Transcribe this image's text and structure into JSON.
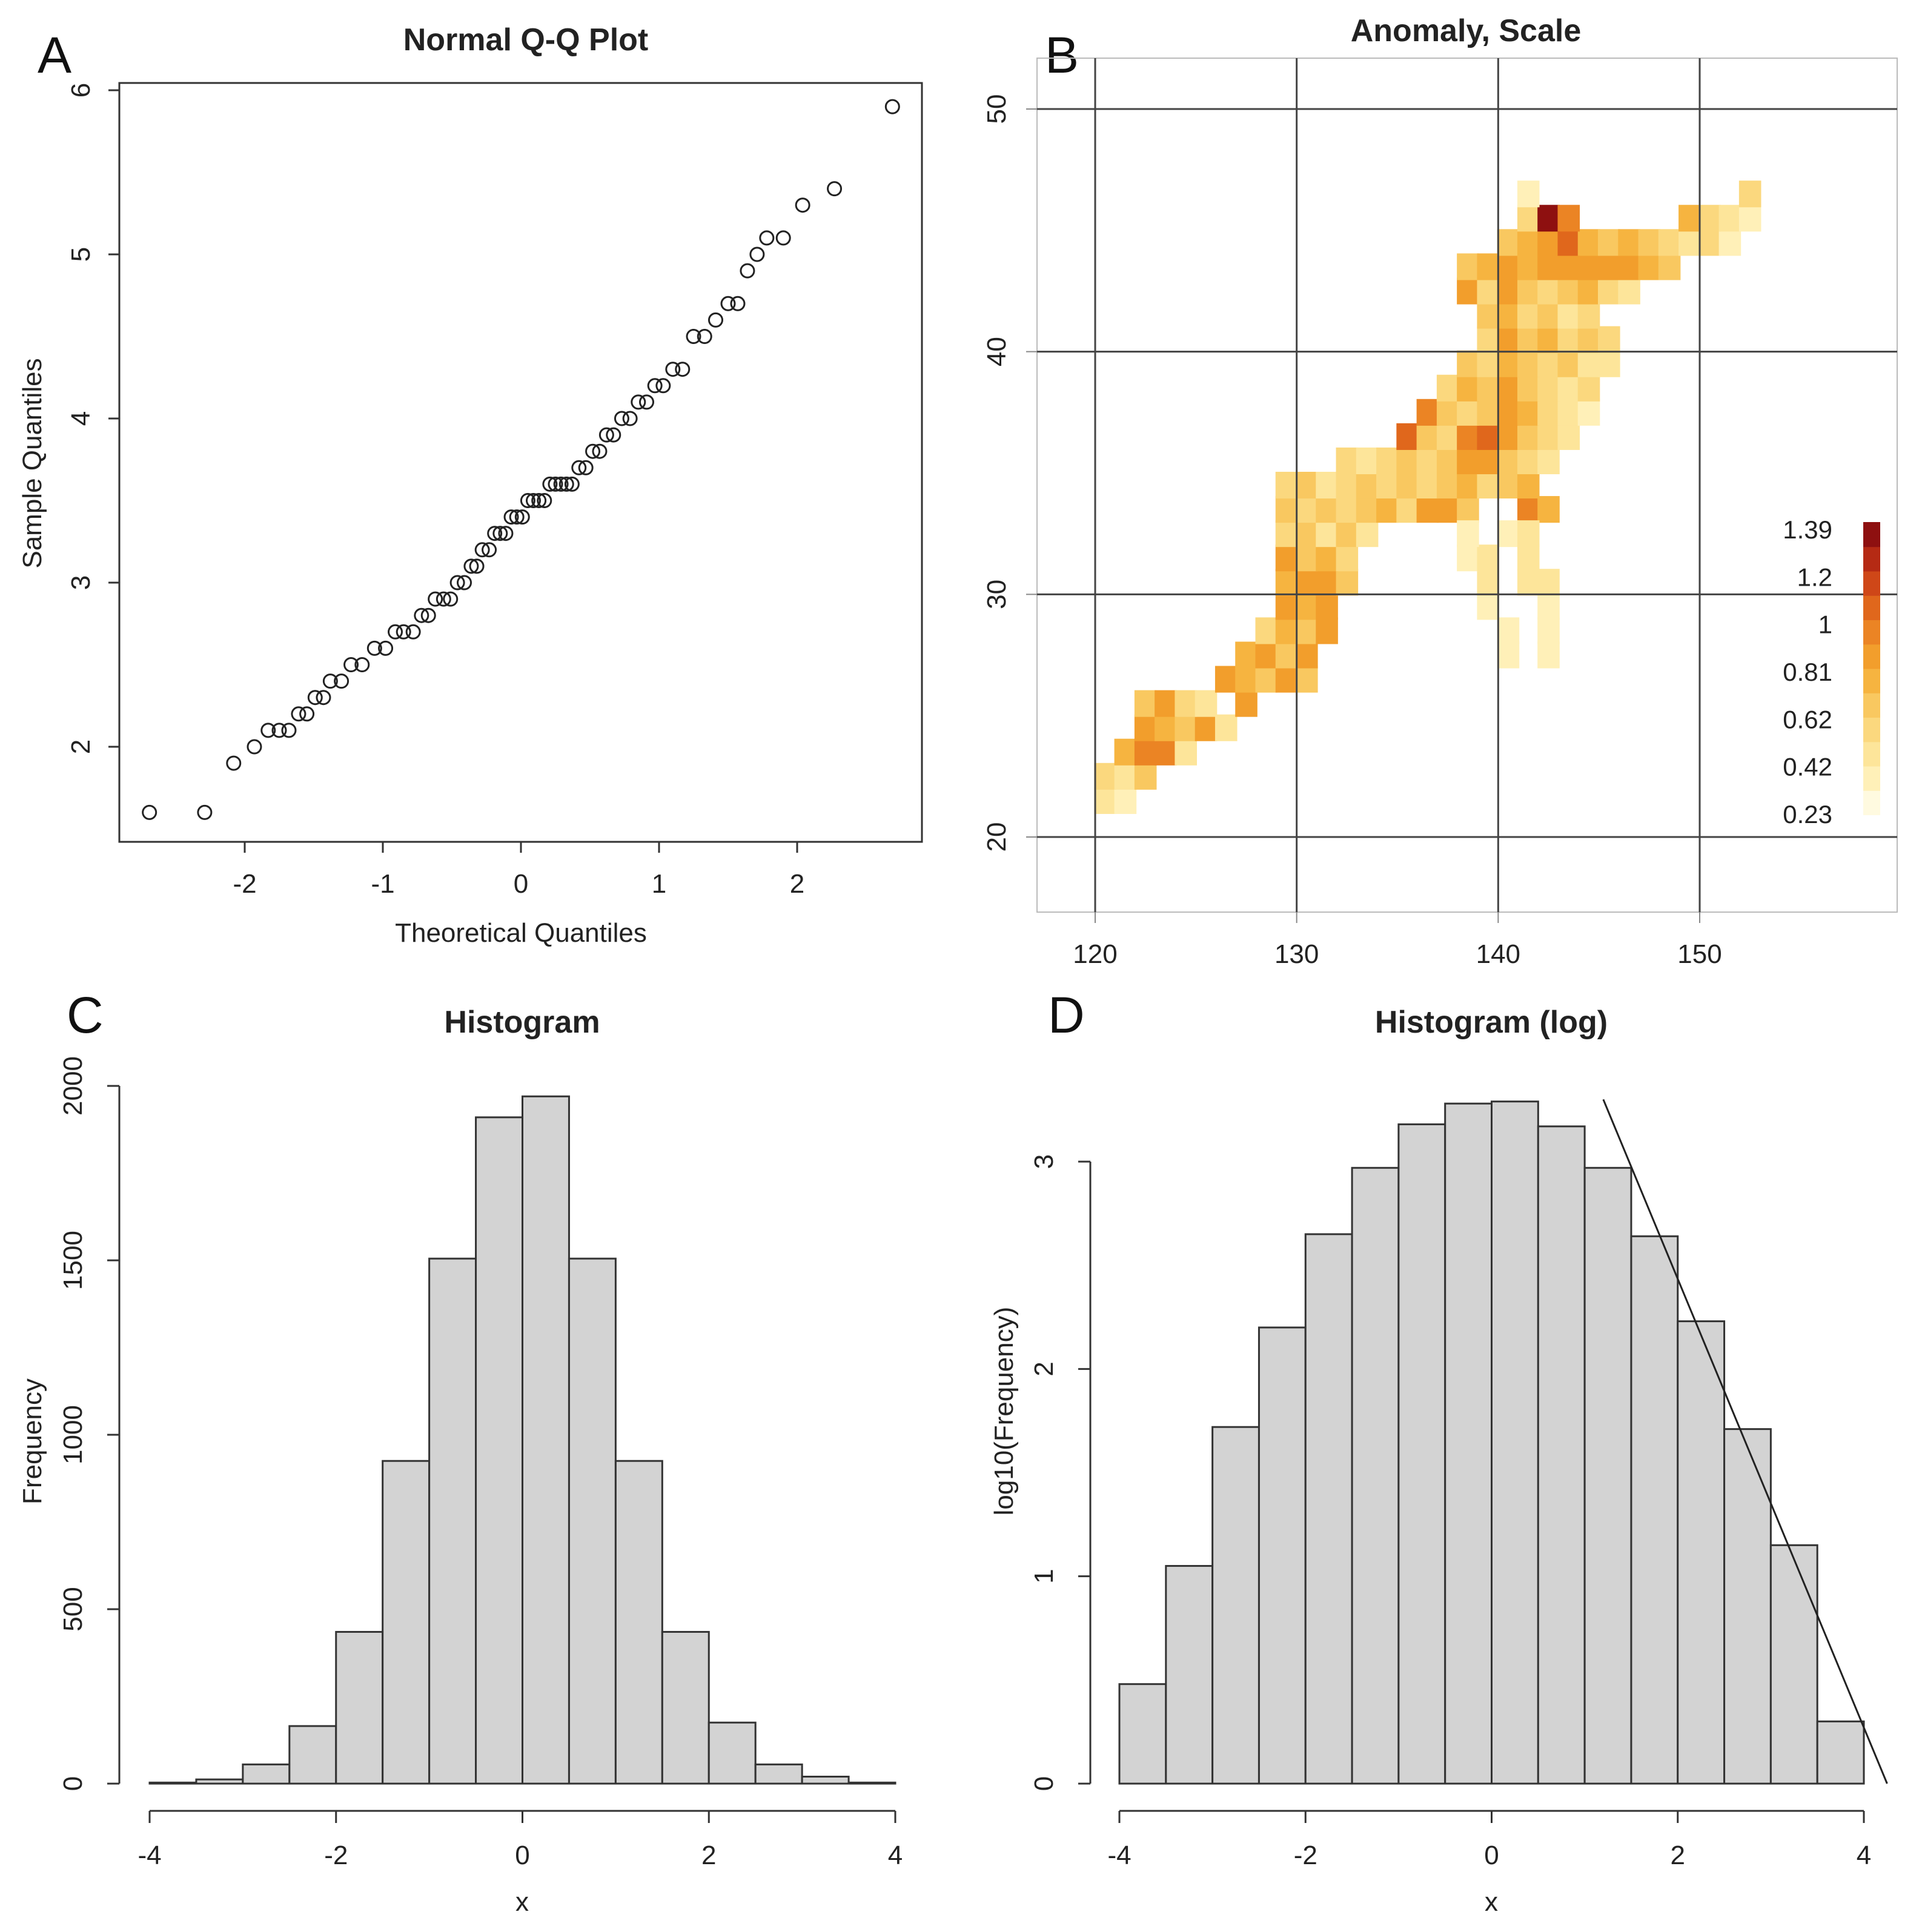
{
  "chart_data": [
    {
      "panel": "A",
      "type": "scatter",
      "title": "Normal Q-Q Plot",
      "xlabel": "Theoretical Quantiles",
      "ylabel": "Sample Quantiles",
      "xlim": [
        -2.8,
        2.8
      ],
      "ylim": [
        1.5,
        6.0
      ],
      "xticks": [
        "-2",
        "-1",
        "0",
        "1",
        "2"
      ],
      "yticks": [
        "2",
        "3",
        "4",
        "5",
        "6"
      ],
      "x": [
        -2.69,
        -2.29,
        -2.08,
        -1.93,
        -1.83,
        -1.75,
        -1.68,
        -1.61,
        -1.55,
        -1.49,
        -1.43,
        -1.38,
        -1.3,
        -1.23,
        -1.15,
        -1.06,
        -0.98,
        -0.91,
        -0.85,
        -0.78,
        -0.72,
        -0.67,
        -0.62,
        -0.56,
        -0.51,
        -0.46,
        -0.41,
        -0.36,
        -0.32,
        -0.28,
        -0.23,
        -0.19,
        -0.15,
        -0.11,
        -0.07,
        -0.03,
        0.01,
        0.05,
        0.09,
        0.13,
        0.17,
        0.21,
        0.25,
        0.29,
        0.33,
        0.37,
        0.42,
        0.47,
        0.52,
        0.57,
        0.62,
        0.67,
        0.73,
        0.79,
        0.85,
        0.91,
        0.97,
        1.03,
        1.1,
        1.17,
        1.25,
        1.33,
        1.41,
        1.5,
        1.57,
        1.64,
        1.71,
        1.78,
        1.9,
        2.04,
        2.27,
        2.69
      ],
      "y": [
        1.6,
        1.6,
        1.9,
        2.0,
        2.1,
        2.1,
        2.1,
        2.2,
        2.2,
        2.3,
        2.3,
        2.4,
        2.4,
        2.5,
        2.5,
        2.6,
        2.6,
        2.7,
        2.7,
        2.7,
        2.8,
        2.8,
        2.9,
        2.9,
        2.9,
        3.0,
        3.0,
        3.1,
        3.1,
        3.2,
        3.2,
        3.3,
        3.3,
        3.3,
        3.4,
        3.4,
        3.4,
        3.5,
        3.5,
        3.5,
        3.5,
        3.6,
        3.6,
        3.6,
        3.6,
        3.6,
        3.7,
        3.7,
        3.8,
        3.8,
        3.9,
        3.9,
        4.0,
        4.0,
        4.1,
        4.1,
        4.2,
        4.2,
        4.3,
        4.3,
        4.5,
        4.5,
        4.6,
        4.7,
        4.7,
        4.9,
        5.0,
        5.1,
        5.1,
        5.3,
        5.4,
        5.9
      ]
    },
    {
      "panel": "B",
      "type": "heatmap",
      "title": "Anomaly, Scale",
      "xlim": [
        117,
        157
      ],
      "ylim": [
        17,
        52
      ],
      "xticks": [
        "120",
        "130",
        "140",
        "150"
      ],
      "yticks": [
        "20",
        "30",
        "40",
        "50"
      ],
      "grid": true,
      "cell_size": 1.1,
      "legend_labels": [
        "1.39",
        "1.2",
        "1",
        "0.81",
        "0.62",
        "0.42",
        "0.23"
      ],
      "legend_position": "right",
      "colorscale": [
        "#fffae0",
        "#fff0b8",
        "#fde59a",
        "#fbd87e",
        "#f9c860",
        "#f6b440",
        "#f29e2c",
        "#eb8424",
        "#e0671c",
        "#cf4718",
        "#b52a14",
        "#8e1010"
      ],
      "cells": [
        [
          120.5,
          21.5,
          0.4
        ],
        [
          121.5,
          21.5,
          0.3
        ],
        [
          120.5,
          22.5,
          0.5
        ],
        [
          121.5,
          22.5,
          0.4
        ],
        [
          122.5,
          22.5,
          0.6
        ],
        [
          121.5,
          23.5,
          0.7
        ],
        [
          122.5,
          23.5,
          1.0
        ],
        [
          123.5,
          23.5,
          1.0
        ],
        [
          124.5,
          23.5,
          0.4
        ],
        [
          122.5,
          24.5,
          0.8
        ],
        [
          123.5,
          24.5,
          0.7
        ],
        [
          124.5,
          24.5,
          0.6
        ],
        [
          125.5,
          24.5,
          0.8
        ],
        [
          126.5,
          24.5,
          0.4
        ],
        [
          122.5,
          25.5,
          0.6
        ],
        [
          123.5,
          25.5,
          0.8
        ],
        [
          124.5,
          25.5,
          0.5
        ],
        [
          125.5,
          25.5,
          0.4
        ],
        [
          127.5,
          25.5,
          0.8
        ],
        [
          126.5,
          26.5,
          0.9
        ],
        [
          127.5,
          26.5,
          0.7
        ],
        [
          128.5,
          26.5,
          0.6
        ],
        [
          129.5,
          26.5,
          0.9
        ],
        [
          130.5,
          26.5,
          0.6
        ],
        [
          127.5,
          27.5,
          0.7
        ],
        [
          128.5,
          27.5,
          0.8
        ],
        [
          129.5,
          27.5,
          0.6
        ],
        [
          130.5,
          27.5,
          0.8
        ],
        [
          128.5,
          28.5,
          0.5
        ],
        [
          129.5,
          28.5,
          0.7
        ],
        [
          130.5,
          28.5,
          0.6
        ],
        [
          131.5,
          28.5,
          0.8
        ],
        [
          129.5,
          29.5,
          0.8
        ],
        [
          130.5,
          29.5,
          0.7
        ],
        [
          131.5,
          29.5,
          0.9
        ],
        [
          129.5,
          30.5,
          0.7
        ],
        [
          130.5,
          30.5,
          0.9
        ],
        [
          131.5,
          30.5,
          0.8
        ],
        [
          132.5,
          30.5,
          0.6
        ],
        [
          129.5,
          31.5,
          0.8
        ],
        [
          130.5,
          31.5,
          0.6
        ],
        [
          131.5,
          31.5,
          0.7
        ],
        [
          132.5,
          31.5,
          0.5
        ],
        [
          129.5,
          32.5,
          0.5
        ],
        [
          130.5,
          32.5,
          0.6
        ],
        [
          131.5,
          32.5,
          0.4
        ],
        [
          132.5,
          32.5,
          0.6
        ],
        [
          133.5,
          32.5,
          0.4
        ],
        [
          129.5,
          33.5,
          0.6
        ],
        [
          130.5,
          33.5,
          0.5
        ],
        [
          131.5,
          33.5,
          0.6
        ],
        [
          132.5,
          33.5,
          0.5
        ],
        [
          133.5,
          33.5,
          0.6
        ],
        [
          134.5,
          33.5,
          0.7
        ],
        [
          135.5,
          33.5,
          0.5
        ],
        [
          136.5,
          33.5,
          0.8
        ],
        [
          137.5,
          33.5,
          0.9
        ],
        [
          138.5,
          33.5,
          0.6
        ],
        [
          141.5,
          33.5,
          1.0
        ],
        [
          142.5,
          33.5,
          0.7
        ],
        [
          129.5,
          34.5,
          0.5
        ],
        [
          130.5,
          34.5,
          0.6
        ],
        [
          131.5,
          34.5,
          0.4
        ],
        [
          132.5,
          34.5,
          0.5
        ],
        [
          133.5,
          34.5,
          0.6
        ],
        [
          134.5,
          34.5,
          0.5
        ],
        [
          135.5,
          34.5,
          0.6
        ],
        [
          136.5,
          34.5,
          0.5
        ],
        [
          137.5,
          34.5,
          0.6
        ],
        [
          138.5,
          34.5,
          0.7
        ],
        [
          139.5,
          34.5,
          0.5
        ],
        [
          140.5,
          34.5,
          0.6
        ],
        [
          141.5,
          34.5,
          0.7
        ],
        [
          132.5,
          35.5,
          0.5
        ],
        [
          133.5,
          35.5,
          0.4
        ],
        [
          134.5,
          35.5,
          0.5
        ],
        [
          135.5,
          35.5,
          0.6
        ],
        [
          136.5,
          35.5,
          0.5
        ],
        [
          137.5,
          35.5,
          0.6
        ],
        [
          138.5,
          35.5,
          0.8
        ],
        [
          139.5,
          35.5,
          0.9
        ],
        [
          140.5,
          35.5,
          0.6
        ],
        [
          141.5,
          35.5,
          0.5
        ],
        [
          142.5,
          35.5,
          0.4
        ],
        [
          135.5,
          36.5,
          1.1
        ],
        [
          136.5,
          36.5,
          0.6
        ],
        [
          137.5,
          36.5,
          0.5
        ],
        [
          138.5,
          36.5,
          1.0
        ],
        [
          139.5,
          36.5,
          1.1
        ],
        [
          140.5,
          36.5,
          0.9
        ],
        [
          141.5,
          36.5,
          0.6
        ],
        [
          142.5,
          36.5,
          0.5
        ],
        [
          143.5,
          36.5,
          0.4
        ],
        [
          136.5,
          37.5,
          1.0
        ],
        [
          137.5,
          37.5,
          0.6
        ],
        [
          138.5,
          37.5,
          0.5
        ],
        [
          139.5,
          37.5,
          0.6
        ],
        [
          140.5,
          37.5,
          0.9
        ],
        [
          141.5,
          37.5,
          0.7
        ],
        [
          142.5,
          37.5,
          0.5
        ],
        [
          143.5,
          37.5,
          0.4
        ],
        [
          144.5,
          37.5,
          0.3
        ],
        [
          137.5,
          38.5,
          0.5
        ],
        [
          138.5,
          38.5,
          0.7
        ],
        [
          139.5,
          38.5,
          0.6
        ],
        [
          140.5,
          38.5,
          0.8
        ],
        [
          141.5,
          38.5,
          0.6
        ],
        [
          142.5,
          38.5,
          0.5
        ],
        [
          143.5,
          38.5,
          0.4
        ],
        [
          144.5,
          38.5,
          0.5
        ],
        [
          138.5,
          39.5,
          0.6
        ],
        [
          139.5,
          39.5,
          0.5
        ],
        [
          140.5,
          39.5,
          0.7
        ],
        [
          141.5,
          39.5,
          0.6
        ],
        [
          142.5,
          39.5,
          0.5
        ],
        [
          143.5,
          39.5,
          0.6
        ],
        [
          144.5,
          39.5,
          0.4
        ],
        [
          145.5,
          39.5,
          0.4
        ],
        [
          139.5,
          40.5,
          0.5
        ],
        [
          140.5,
          40.5,
          0.8
        ],
        [
          141.5,
          40.5,
          0.6
        ],
        [
          142.5,
          40.5,
          0.7
        ],
        [
          143.5,
          40.5,
          0.5
        ],
        [
          144.5,
          40.5,
          0.6
        ],
        [
          145.5,
          40.5,
          0.5
        ],
        [
          139.5,
          41.5,
          0.6
        ],
        [
          140.5,
          41.5,
          0.7
        ],
        [
          141.5,
          41.5,
          0.5
        ],
        [
          142.5,
          41.5,
          0.6
        ],
        [
          143.5,
          41.5,
          0.4
        ],
        [
          144.5,
          41.5,
          0.5
        ],
        [
          138.5,
          42.5,
          0.8
        ],
        [
          139.5,
          42.5,
          0.5
        ],
        [
          140.5,
          42.5,
          0.9
        ],
        [
          141.5,
          42.5,
          0.6
        ],
        [
          142.5,
          42.5,
          0.5
        ],
        [
          143.5,
          42.5,
          0.6
        ],
        [
          144.5,
          42.5,
          0.7
        ],
        [
          145.5,
          42.5,
          0.5
        ],
        [
          146.5,
          42.5,
          0.4
        ],
        [
          138.5,
          43.5,
          0.6
        ],
        [
          139.5,
          43.5,
          0.7
        ],
        [
          140.5,
          43.5,
          0.8
        ],
        [
          141.5,
          43.5,
          0.7
        ],
        [
          142.5,
          43.5,
          0.8
        ],
        [
          143.5,
          43.5,
          0.9
        ],
        [
          144.5,
          43.5,
          0.8
        ],
        [
          145.5,
          43.5,
          0.9
        ],
        [
          146.5,
          43.5,
          0.8
        ],
        [
          147.5,
          43.5,
          0.7
        ],
        [
          148.5,
          43.5,
          0.6
        ],
        [
          140.5,
          44.5,
          0.6
        ],
        [
          141.5,
          44.5,
          0.7
        ],
        [
          142.5,
          44.5,
          0.8
        ],
        [
          143.5,
          44.5,
          1.1
        ],
        [
          144.5,
          44.5,
          0.7
        ],
        [
          145.5,
          44.5,
          0.6
        ],
        [
          146.5,
          44.5,
          0.7
        ],
        [
          147.5,
          44.5,
          0.6
        ],
        [
          148.5,
          44.5,
          0.5
        ],
        [
          149.5,
          44.5,
          0.4
        ],
        [
          150.5,
          44.5,
          0.5
        ],
        [
          151.5,
          44.5,
          0.3
        ],
        [
          141.5,
          45.5,
          0.5
        ],
        [
          142.5,
          45.5,
          1.39
        ],
        [
          143.5,
          45.5,
          1.0
        ],
        [
          149.5,
          45.5,
          0.7
        ],
        [
          150.5,
          45.5,
          0.5
        ],
        [
          151.5,
          45.5,
          0.4
        ],
        [
          152.5,
          45.5,
          0.3
        ],
        [
          141.5,
          46.5,
          0.3
        ],
        [
          152.5,
          46.5,
          0.5
        ],
        [
          139.5,
          29.5,
          0.3
        ],
        [
          139.5,
          30.5,
          0.4
        ],
        [
          138.5,
          31.5,
          0.3
        ],
        [
          139.5,
          31.5,
          0.4
        ],
        [
          138.5,
          32.5,
          0.3
        ],
        [
          140.5,
          32.5,
          0.3
        ],
        [
          141.5,
          32.5,
          0.4
        ],
        [
          140.5,
          28.5,
          0.3
        ],
        [
          140.5,
          27.5,
          0.3
        ],
        [
          141.5,
          30.5,
          0.4
        ],
        [
          141.5,
          31.5,
          0.4
        ],
        [
          142.5,
          28.5,
          0.3
        ],
        [
          142.5,
          29.5,
          0.3
        ],
        [
          142.5,
          30.5,
          0.4
        ],
        [
          142.5,
          27.5,
          0.3
        ]
      ]
    },
    {
      "panel": "C",
      "type": "bar",
      "title": "Histogram",
      "xlabel": "x",
      "ylabel": "Frequency",
      "xlim": [
        -4,
        4
      ],
      "ylim": [
        0,
        2000
      ],
      "xticks": [
        "-4",
        "-2",
        "0",
        "2",
        "4"
      ],
      "yticks": [
        "0",
        "500",
        "1000",
        "1500",
        "2000"
      ],
      "bin_edges": [
        -4,
        -3.5,
        -3,
        -2.5,
        -2,
        -1.5,
        -1,
        -0.5,
        0,
        0.5,
        1,
        1.5,
        2,
        2.5,
        3,
        3.5,
        4
      ],
      "values": [
        3,
        12,
        55,
        165,
        435,
        925,
        1505,
        1910,
        1970,
        1505,
        925,
        435,
        175,
        55,
        20,
        3
      ]
    },
    {
      "panel": "D",
      "type": "bar",
      "title": "Histogram (log)",
      "xlabel": "x",
      "ylabel": "log10(Frequency)",
      "xlim": [
        -4,
        4
      ],
      "ylim": [
        0,
        3.3
      ],
      "xticks": [
        "-4",
        "-2",
        "0",
        "2",
        "4"
      ],
      "yticks": [
        "0",
        "1",
        "2",
        "3"
      ],
      "bin_edges": [
        -4,
        -3.5,
        -3,
        -2.5,
        -2,
        -1.5,
        -1,
        -0.5,
        0,
        0.5,
        1,
        1.5,
        2,
        2.5,
        3,
        3.5,
        4
      ],
      "values": [
        0.48,
        1.05,
        1.72,
        2.2,
        2.65,
        2.97,
        3.18,
        3.28,
        3.29,
        3.17,
        2.97,
        2.64,
        2.23,
        1.71,
        1.15,
        0.3
      ],
      "line": {
        "x": [
          1.2,
          4.25
        ],
        "y": [
          3.3,
          0.0
        ]
      }
    }
  ]
}
